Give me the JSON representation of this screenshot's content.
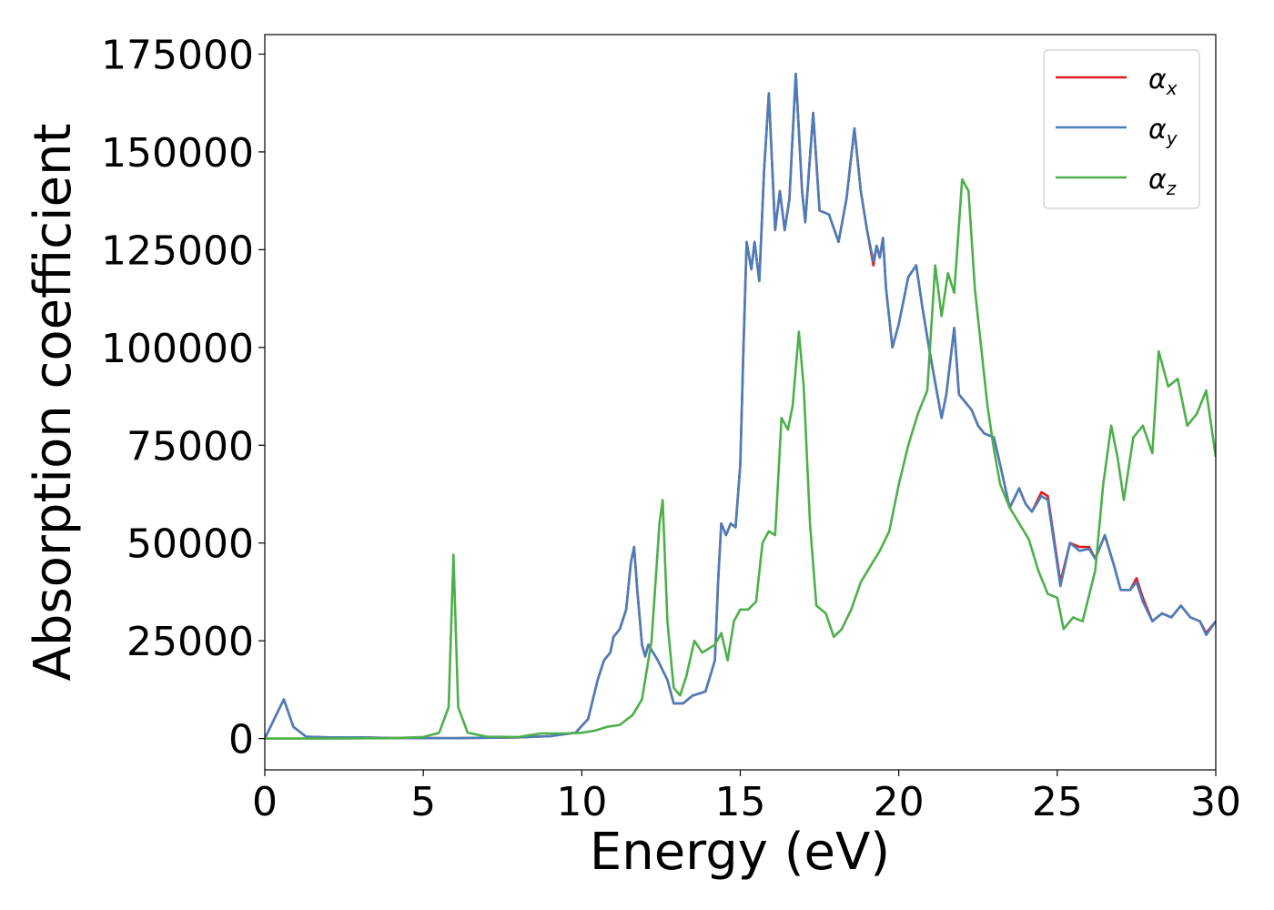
{
  "chart_data": {
    "type": "line",
    "xlabel": "Energy (eV)",
    "ylabel": "Absorption coefficient",
    "xlim": [
      0,
      30
    ],
    "ylim": [
      -8000,
      180000
    ],
    "xticks": [
      "0",
      "5",
      "10",
      "15",
      "20",
      "25",
      "30"
    ],
    "xtick_values": [
      0,
      5,
      10,
      15,
      20,
      25,
      30
    ],
    "yticks": [
      "0",
      "25000",
      "50000",
      "75000",
      "100000",
      "125000",
      "150000",
      "175000"
    ],
    "ytick_values": [
      0,
      25000,
      50000,
      75000,
      100000,
      125000,
      150000,
      175000
    ],
    "grid": false,
    "legend_position": "top-right",
    "series": [
      {
        "name": "α",
        "subscript": "x",
        "color": "#e41a1c",
        "points": [
          [
            0,
            0
          ],
          [
            0.3,
            5000
          ],
          [
            0.6,
            10000
          ],
          [
            0.9,
            3000
          ],
          [
            1.3,
            500
          ],
          [
            2,
            300
          ],
          [
            3,
            300
          ],
          [
            4,
            150
          ],
          [
            6,
            100
          ],
          [
            8,
            300
          ],
          [
            9,
            600
          ],
          [
            9.8,
            1500
          ],
          [
            10.2,
            5000
          ],
          [
            10.5,
            15000
          ],
          [
            10.7,
            20000
          ],
          [
            10.9,
            22000
          ],
          [
            11.0,
            26000
          ],
          [
            11.2,
            28000
          ],
          [
            11.4,
            33000
          ],
          [
            11.55,
            45000
          ],
          [
            11.65,
            49000
          ],
          [
            11.75,
            38000
          ],
          [
            11.9,
            24000
          ],
          [
            12.0,
            21000
          ],
          [
            12.1,
            24000
          ],
          [
            12.4,
            20000
          ],
          [
            12.7,
            15000
          ],
          [
            12.9,
            9000
          ],
          [
            13.2,
            9000
          ],
          [
            13.5,
            11000
          ],
          [
            13.9,
            12000
          ],
          [
            14.2,
            20000
          ],
          [
            14.3,
            40000
          ],
          [
            14.4,
            55000
          ],
          [
            14.55,
            52000
          ],
          [
            14.7,
            55000
          ],
          [
            14.85,
            54000
          ],
          [
            15.0,
            70000
          ],
          [
            15.1,
            100000
          ],
          [
            15.2,
            127000
          ],
          [
            15.35,
            120000
          ],
          [
            15.45,
            127000
          ],
          [
            15.6,
            117000
          ],
          [
            15.75,
            145000
          ],
          [
            15.9,
            165000
          ],
          [
            16.1,
            130000
          ],
          [
            16.25,
            140000
          ],
          [
            16.4,
            130000
          ],
          [
            16.55,
            138000
          ],
          [
            16.75,
            170000
          ],
          [
            16.95,
            140000
          ],
          [
            17.05,
            132000
          ],
          [
            17.3,
            160000
          ],
          [
            17.5,
            135000
          ],
          [
            17.8,
            134000
          ],
          [
            18.1,
            127000
          ],
          [
            18.35,
            138000
          ],
          [
            18.6,
            156000
          ],
          [
            18.8,
            140000
          ],
          [
            19.0,
            130000
          ],
          [
            19.2,
            121000
          ],
          [
            19.3,
            126000
          ],
          [
            19.4,
            123000
          ],
          [
            19.5,
            128000
          ],
          [
            19.6,
            115000
          ],
          [
            19.8,
            100000
          ],
          [
            20.0,
            106000
          ],
          [
            20.3,
            118000
          ],
          [
            20.55,
            121000
          ],
          [
            20.75,
            110000
          ],
          [
            20.95,
            100000
          ],
          [
            21.15,
            91000
          ],
          [
            21.35,
            82000
          ],
          [
            21.5,
            88000
          ],
          [
            21.75,
            105000
          ],
          [
            21.9,
            88000
          ],
          [
            22.1,
            86000
          ],
          [
            22.3,
            84000
          ],
          [
            22.5,
            80000
          ],
          [
            22.7,
            78000
          ],
          [
            23.0,
            77000
          ],
          [
            23.2,
            70000
          ],
          [
            23.5,
            59000
          ],
          [
            23.8,
            64000
          ],
          [
            24.0,
            60000
          ],
          [
            24.2,
            58000
          ],
          [
            24.5,
            63000
          ],
          [
            24.7,
            62000
          ],
          [
            25.1,
            40000
          ],
          [
            25.4,
            50000
          ],
          [
            25.7,
            49000
          ],
          [
            26.0,
            49000
          ],
          [
            26.2,
            46000
          ],
          [
            26.5,
            52000
          ],
          [
            26.8,
            44000
          ],
          [
            27.0,
            38000
          ],
          [
            27.3,
            38000
          ],
          [
            27.5,
            41000
          ],
          [
            27.7,
            36000
          ],
          [
            28.0,
            30000
          ],
          [
            28.3,
            32000
          ],
          [
            28.6,
            31000
          ],
          [
            28.9,
            34000
          ],
          [
            29.2,
            31000
          ],
          [
            29.5,
            30000
          ],
          [
            29.7,
            27000
          ],
          [
            30.0,
            30000
          ]
        ]
      },
      {
        "name": "α",
        "subscript": "y",
        "color": "#4a7ebb",
        "points": [
          [
            0,
            0
          ],
          [
            0.3,
            5000
          ],
          [
            0.6,
            10000
          ],
          [
            0.9,
            3000
          ],
          [
            1.3,
            500
          ],
          [
            2,
            300
          ],
          [
            3,
            300
          ],
          [
            4,
            150
          ],
          [
            6,
            100
          ],
          [
            8,
            300
          ],
          [
            9,
            600
          ],
          [
            9.8,
            1500
          ],
          [
            10.2,
            5000
          ],
          [
            10.5,
            15000
          ],
          [
            10.7,
            20000
          ],
          [
            10.9,
            22000
          ],
          [
            11.0,
            26000
          ],
          [
            11.2,
            28000
          ],
          [
            11.4,
            33000
          ],
          [
            11.55,
            45000
          ],
          [
            11.65,
            49000
          ],
          [
            11.75,
            38000
          ],
          [
            11.9,
            24000
          ],
          [
            12.0,
            21000
          ],
          [
            12.1,
            24000
          ],
          [
            12.4,
            20000
          ],
          [
            12.7,
            15000
          ],
          [
            12.9,
            9000
          ],
          [
            13.2,
            9000
          ],
          [
            13.5,
            11000
          ],
          [
            13.9,
            12000
          ],
          [
            14.2,
            20000
          ],
          [
            14.3,
            40000
          ],
          [
            14.4,
            55000
          ],
          [
            14.55,
            52000
          ],
          [
            14.7,
            55000
          ],
          [
            14.85,
            54000
          ],
          [
            15.0,
            70000
          ],
          [
            15.1,
            100000
          ],
          [
            15.2,
            127000
          ],
          [
            15.35,
            120000
          ],
          [
            15.45,
            127000
          ],
          [
            15.6,
            117000
          ],
          [
            15.75,
            145000
          ],
          [
            15.9,
            165000
          ],
          [
            16.1,
            130000
          ],
          [
            16.25,
            140000
          ],
          [
            16.4,
            130000
          ],
          [
            16.55,
            138000
          ],
          [
            16.75,
            170000
          ],
          [
            16.95,
            140000
          ],
          [
            17.05,
            132000
          ],
          [
            17.3,
            160000
          ],
          [
            17.5,
            135000
          ],
          [
            17.8,
            134000
          ],
          [
            18.1,
            127000
          ],
          [
            18.35,
            138000
          ],
          [
            18.6,
            156000
          ],
          [
            18.8,
            140000
          ],
          [
            19.0,
            130000
          ],
          [
            19.2,
            122000
          ],
          [
            19.3,
            126000
          ],
          [
            19.4,
            123000
          ],
          [
            19.5,
            128000
          ],
          [
            19.6,
            115000
          ],
          [
            19.8,
            100000
          ],
          [
            20.0,
            106000
          ],
          [
            20.3,
            118000
          ],
          [
            20.55,
            121000
          ],
          [
            20.75,
            110000
          ],
          [
            20.95,
            100000
          ],
          [
            21.15,
            91000
          ],
          [
            21.35,
            82000
          ],
          [
            21.5,
            88000
          ],
          [
            21.75,
            105000
          ],
          [
            21.9,
            88000
          ],
          [
            22.1,
            86000
          ],
          [
            22.3,
            84000
          ],
          [
            22.5,
            80000
          ],
          [
            22.7,
            78000
          ],
          [
            23.0,
            77000
          ],
          [
            23.2,
            70000
          ],
          [
            23.5,
            59000
          ],
          [
            23.8,
            64000
          ],
          [
            24.0,
            60000
          ],
          [
            24.2,
            58000
          ],
          [
            24.5,
            62000
          ],
          [
            24.7,
            61000
          ],
          [
            25.1,
            39000
          ],
          [
            25.4,
            50000
          ],
          [
            25.7,
            48000
          ],
          [
            26.0,
            48500
          ],
          [
            26.2,
            46000
          ],
          [
            26.5,
            52000
          ],
          [
            26.8,
            44000
          ],
          [
            27.0,
            38000
          ],
          [
            27.3,
            38000
          ],
          [
            27.5,
            40000
          ],
          [
            27.7,
            35000
          ],
          [
            28.0,
            30000
          ],
          [
            28.3,
            32000
          ],
          [
            28.6,
            31000
          ],
          [
            28.9,
            34000
          ],
          [
            29.2,
            31000
          ],
          [
            29.5,
            30000
          ],
          [
            29.7,
            26500
          ],
          [
            30.0,
            30000
          ]
        ]
      },
      {
        "name": "α",
        "subscript": "z",
        "color": "#4daf4a",
        "points": [
          [
            0,
            0
          ],
          [
            2,
            0
          ],
          [
            4,
            100
          ],
          [
            5.0,
            400
          ],
          [
            5.5,
            1500
          ],
          [
            5.8,
            8000
          ],
          [
            5.95,
            47000
          ],
          [
            6.1,
            8000
          ],
          [
            6.4,
            1500
          ],
          [
            7,
            500
          ],
          [
            8,
            400
          ],
          [
            8.7,
            1300
          ],
          [
            9.5,
            1300
          ],
          [
            10.0,
            1500
          ],
          [
            10.4,
            2000
          ],
          [
            10.8,
            3000
          ],
          [
            11.2,
            3500
          ],
          [
            11.6,
            6000
          ],
          [
            11.9,
            10000
          ],
          [
            12.2,
            25000
          ],
          [
            12.45,
            55000
          ],
          [
            12.55,
            61000
          ],
          [
            12.7,
            30000
          ],
          [
            12.9,
            13000
          ],
          [
            13.1,
            11000
          ],
          [
            13.3,
            16000
          ],
          [
            13.55,
            25000
          ],
          [
            13.8,
            22000
          ],
          [
            14.0,
            23000
          ],
          [
            14.2,
            24000
          ],
          [
            14.4,
            27000
          ],
          [
            14.6,
            20000
          ],
          [
            14.8,
            30000
          ],
          [
            15.0,
            33000
          ],
          [
            15.25,
            33000
          ],
          [
            15.5,
            35000
          ],
          [
            15.7,
            50000
          ],
          [
            15.9,
            53000
          ],
          [
            16.1,
            52000
          ],
          [
            16.3,
            82000
          ],
          [
            16.5,
            79000
          ],
          [
            16.65,
            85000
          ],
          [
            16.85,
            104000
          ],
          [
            17.0,
            90000
          ],
          [
            17.2,
            55000
          ],
          [
            17.4,
            34000
          ],
          [
            17.7,
            32000
          ],
          [
            17.95,
            26000
          ],
          [
            18.2,
            28000
          ],
          [
            18.5,
            33000
          ],
          [
            18.8,
            40000
          ],
          [
            19.1,
            44000
          ],
          [
            19.4,
            48000
          ],
          [
            19.7,
            53000
          ],
          [
            20.0,
            65000
          ],
          [
            20.3,
            75000
          ],
          [
            20.6,
            83000
          ],
          [
            20.9,
            89000
          ],
          [
            21.15,
            121000
          ],
          [
            21.35,
            108000
          ],
          [
            21.55,
            119000
          ],
          [
            21.75,
            114000
          ],
          [
            22.0,
            143000
          ],
          [
            22.2,
            140000
          ],
          [
            22.4,
            115000
          ],
          [
            22.6,
            100000
          ],
          [
            22.8,
            85000
          ],
          [
            23.0,
            74000
          ],
          [
            23.2,
            65000
          ],
          [
            23.5,
            59000
          ],
          [
            23.8,
            55000
          ],
          [
            24.1,
            51000
          ],
          [
            24.4,
            43000
          ],
          [
            24.7,
            37000
          ],
          [
            25.0,
            36000
          ],
          [
            25.2,
            28000
          ],
          [
            25.5,
            31000
          ],
          [
            25.8,
            30000
          ],
          [
            26.2,
            43000
          ],
          [
            26.45,
            65000
          ],
          [
            26.7,
            80000
          ],
          [
            26.9,
            72000
          ],
          [
            27.1,
            61000
          ],
          [
            27.4,
            77000
          ],
          [
            27.7,
            80000
          ],
          [
            28.0,
            73000
          ],
          [
            28.2,
            99000
          ],
          [
            28.5,
            90000
          ],
          [
            28.8,
            92000
          ],
          [
            29.1,
            80000
          ],
          [
            29.4,
            83000
          ],
          [
            29.7,
            89000
          ],
          [
            30.0,
            72000
          ]
        ]
      }
    ]
  }
}
